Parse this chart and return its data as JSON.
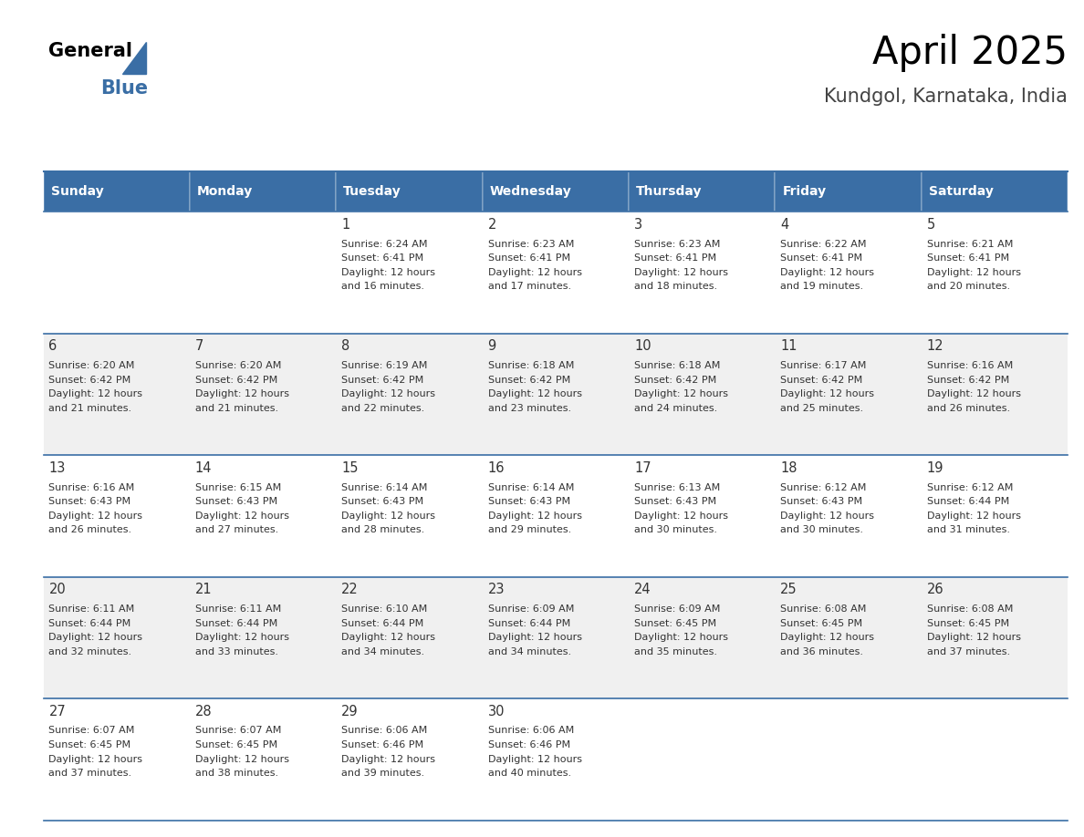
{
  "title": "April 2025",
  "subtitle": "Kundgol, Karnataka, India",
  "days_of_week": [
    "Sunday",
    "Monday",
    "Tuesday",
    "Wednesday",
    "Thursday",
    "Friday",
    "Saturday"
  ],
  "header_bg_color": "#3a6ea5",
  "header_text_color": "#ffffff",
  "cell_bg_color_light": "#f0f0f0",
  "cell_bg_color_white": "#ffffff",
  "cell_text_color": "#333333",
  "border_color": "#3a6ea5",
  "calendar_data": [
    [
      {
        "day": "",
        "sunrise": "",
        "sunset": "",
        "daylight_hours": 0,
        "daylight_minutes": 0
      },
      {
        "day": "",
        "sunrise": "",
        "sunset": "",
        "daylight_hours": 0,
        "daylight_minutes": 0
      },
      {
        "day": "1",
        "sunrise": "6:24 AM",
        "sunset": "6:41 PM",
        "daylight_hours": 12,
        "daylight_minutes": 16
      },
      {
        "day": "2",
        "sunrise": "6:23 AM",
        "sunset": "6:41 PM",
        "daylight_hours": 12,
        "daylight_minutes": 17
      },
      {
        "day": "3",
        "sunrise": "6:23 AM",
        "sunset": "6:41 PM",
        "daylight_hours": 12,
        "daylight_minutes": 18
      },
      {
        "day": "4",
        "sunrise": "6:22 AM",
        "sunset": "6:41 PM",
        "daylight_hours": 12,
        "daylight_minutes": 19
      },
      {
        "day": "5",
        "sunrise": "6:21 AM",
        "sunset": "6:41 PM",
        "daylight_hours": 12,
        "daylight_minutes": 20
      }
    ],
    [
      {
        "day": "6",
        "sunrise": "6:20 AM",
        "sunset": "6:42 PM",
        "daylight_hours": 12,
        "daylight_minutes": 21
      },
      {
        "day": "7",
        "sunrise": "6:20 AM",
        "sunset": "6:42 PM",
        "daylight_hours": 12,
        "daylight_minutes": 21
      },
      {
        "day": "8",
        "sunrise": "6:19 AM",
        "sunset": "6:42 PM",
        "daylight_hours": 12,
        "daylight_minutes": 22
      },
      {
        "day": "9",
        "sunrise": "6:18 AM",
        "sunset": "6:42 PM",
        "daylight_hours": 12,
        "daylight_minutes": 23
      },
      {
        "day": "10",
        "sunrise": "6:18 AM",
        "sunset": "6:42 PM",
        "daylight_hours": 12,
        "daylight_minutes": 24
      },
      {
        "day": "11",
        "sunrise": "6:17 AM",
        "sunset": "6:42 PM",
        "daylight_hours": 12,
        "daylight_minutes": 25
      },
      {
        "day": "12",
        "sunrise": "6:16 AM",
        "sunset": "6:42 PM",
        "daylight_hours": 12,
        "daylight_minutes": 26
      }
    ],
    [
      {
        "day": "13",
        "sunrise": "6:16 AM",
        "sunset": "6:43 PM",
        "daylight_hours": 12,
        "daylight_minutes": 26
      },
      {
        "day": "14",
        "sunrise": "6:15 AM",
        "sunset": "6:43 PM",
        "daylight_hours": 12,
        "daylight_minutes": 27
      },
      {
        "day": "15",
        "sunrise": "6:14 AM",
        "sunset": "6:43 PM",
        "daylight_hours": 12,
        "daylight_minutes": 28
      },
      {
        "day": "16",
        "sunrise": "6:14 AM",
        "sunset": "6:43 PM",
        "daylight_hours": 12,
        "daylight_minutes": 29
      },
      {
        "day": "17",
        "sunrise": "6:13 AM",
        "sunset": "6:43 PM",
        "daylight_hours": 12,
        "daylight_minutes": 30
      },
      {
        "day": "18",
        "sunrise": "6:12 AM",
        "sunset": "6:43 PM",
        "daylight_hours": 12,
        "daylight_minutes": 30
      },
      {
        "day": "19",
        "sunrise": "6:12 AM",
        "sunset": "6:44 PM",
        "daylight_hours": 12,
        "daylight_minutes": 31
      }
    ],
    [
      {
        "day": "20",
        "sunrise": "6:11 AM",
        "sunset": "6:44 PM",
        "daylight_hours": 12,
        "daylight_minutes": 32
      },
      {
        "day": "21",
        "sunrise": "6:11 AM",
        "sunset": "6:44 PM",
        "daylight_hours": 12,
        "daylight_minutes": 33
      },
      {
        "day": "22",
        "sunrise": "6:10 AM",
        "sunset": "6:44 PM",
        "daylight_hours": 12,
        "daylight_minutes": 34
      },
      {
        "day": "23",
        "sunrise": "6:09 AM",
        "sunset": "6:44 PM",
        "daylight_hours": 12,
        "daylight_minutes": 34
      },
      {
        "day": "24",
        "sunrise": "6:09 AM",
        "sunset": "6:45 PM",
        "daylight_hours": 12,
        "daylight_minutes": 35
      },
      {
        "day": "25",
        "sunrise": "6:08 AM",
        "sunset": "6:45 PM",
        "daylight_hours": 12,
        "daylight_minutes": 36
      },
      {
        "day": "26",
        "sunrise": "6:08 AM",
        "sunset": "6:45 PM",
        "daylight_hours": 12,
        "daylight_minutes": 37
      }
    ],
    [
      {
        "day": "27",
        "sunrise": "6:07 AM",
        "sunset": "6:45 PM",
        "daylight_hours": 12,
        "daylight_minutes": 37
      },
      {
        "day": "28",
        "sunrise": "6:07 AM",
        "sunset": "6:45 PM",
        "daylight_hours": 12,
        "daylight_minutes": 38
      },
      {
        "day": "29",
        "sunrise": "6:06 AM",
        "sunset": "6:46 PM",
        "daylight_hours": 12,
        "daylight_minutes": 39
      },
      {
        "day": "30",
        "sunrise": "6:06 AM",
        "sunset": "6:46 PM",
        "daylight_hours": 12,
        "daylight_minutes": 40
      },
      {
        "day": "",
        "sunrise": "",
        "sunset": "",
        "daylight_hours": 0,
        "daylight_minutes": 0
      },
      {
        "day": "",
        "sunrise": "",
        "sunset": "",
        "daylight_hours": 0,
        "daylight_minutes": 0
      },
      {
        "day": "",
        "sunrise": "",
        "sunset": "",
        "daylight_hours": 0,
        "daylight_minutes": 0
      }
    ]
  ],
  "logo_text_general": "General",
  "logo_text_blue": "Blue",
  "logo_triangle_color": "#3a6ea5"
}
